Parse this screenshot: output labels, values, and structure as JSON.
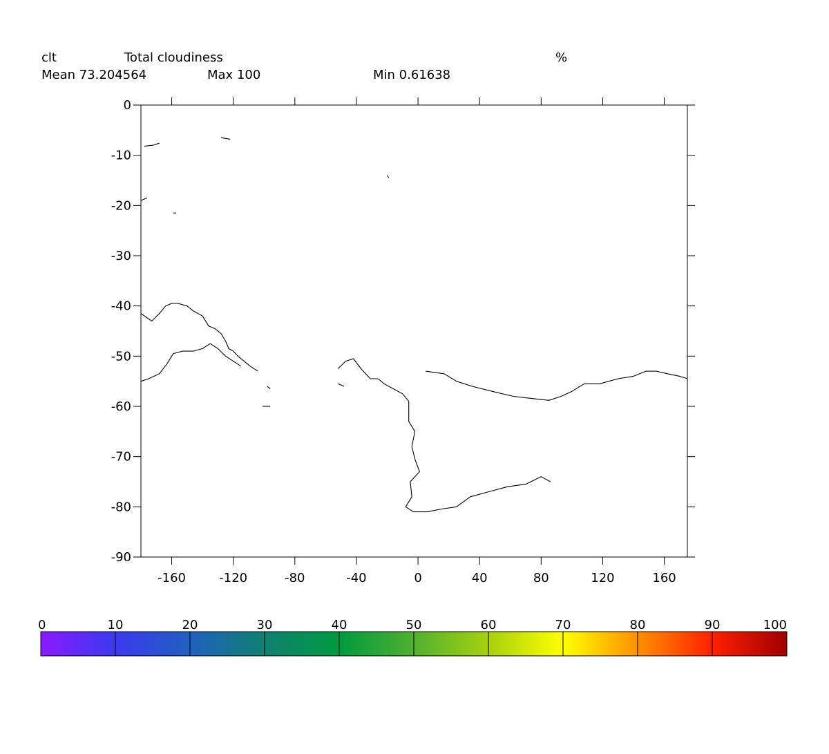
{
  "header": {
    "variable": "clt",
    "long_name": "Total cloudiness",
    "units": "%",
    "mean_text": "Mean 73.204564",
    "max_text": "Max 100",
    "min_text": "Min 0.61638"
  },
  "map": {
    "lon_range": [
      -180,
      175
    ],
    "lat_range": [
      -90,
      0
    ],
    "x_ticks": [
      -160,
      -120,
      -80,
      -40,
      0,
      40,
      80,
      120,
      160
    ],
    "y_ticks": [
      0,
      -10,
      -20,
      -30,
      -40,
      -50,
      -60,
      -70,
      -80,
      -90
    ],
    "x_tick_labels": [
      "-160",
      "-120",
      "-80",
      "-40",
      "0",
      "40",
      "80",
      "120",
      "160"
    ],
    "y_tick_labels": [
      "0",
      "-10",
      "-20",
      "-30",
      "-40",
      "-50",
      "-60",
      "-70",
      "-80",
      "-90"
    ],
    "coastlines": [
      {
        "name": "australia-south-coast",
        "points": [
          [
            -180,
            -41.5
          ],
          [
            -173,
            -43
          ],
          [
            -168,
            -41.5
          ],
          [
            -164,
            -40
          ],
          [
            -160,
            -39.5
          ],
          [
            -156,
            -39.5
          ],
          [
            -150,
            -40
          ],
          [
            -146,
            -41
          ],
          [
            -140,
            -42
          ],
          [
            -136,
            -44
          ],
          [
            -132,
            -44.5
          ],
          [
            -128,
            -45.5
          ],
          [
            -125,
            -47
          ],
          [
            -123,
            -48.5
          ],
          [
            -120,
            -49
          ],
          [
            -117,
            -50
          ],
          [
            -113,
            -51
          ],
          [
            -109,
            -52
          ],
          [
            -104,
            -53
          ]
        ]
      },
      {
        "name": "antarctica-pacific-coast",
        "points": [
          [
            -180,
            -55
          ],
          [
            -175,
            -54.5
          ],
          [
            -168,
            -53.5
          ],
          [
            -163,
            -51.5
          ],
          [
            -159,
            -49.5
          ],
          [
            -153,
            -49
          ],
          [
            -146,
            -49
          ],
          [
            -140,
            -48.5
          ],
          [
            -135,
            -47.5
          ],
          [
            -130,
            -48.5
          ],
          [
            -125,
            -50
          ],
          [
            -120,
            -51
          ],
          [
            -115,
            -52
          ]
        ]
      },
      {
        "name": "africa-south-coast",
        "points": [
          [
            -52,
            -52.5
          ],
          [
            -47,
            -51
          ],
          [
            -42,
            -50.5
          ],
          [
            -37,
            -52.5
          ],
          [
            -31,
            -54.5
          ],
          [
            -26,
            -54.5
          ],
          [
            -22,
            -55.5
          ],
          [
            -16,
            -56.5
          ],
          [
            -10,
            -57.5
          ],
          [
            -6,
            -59
          ],
          [
            -6,
            -63
          ],
          [
            -2,
            -65
          ],
          [
            -4,
            -68
          ],
          [
            -2,
            -70.5
          ],
          [
            1,
            -73
          ],
          [
            -5,
            -75
          ],
          [
            -4,
            -78
          ],
          [
            -8,
            -80
          ],
          [
            -3,
            -81
          ],
          [
            6,
            -81
          ],
          [
            14,
            -80.5
          ],
          [
            25,
            -80
          ],
          [
            34,
            -78
          ],
          [
            46,
            -77
          ],
          [
            58,
            -76
          ],
          [
            70,
            -75.5
          ],
          [
            80,
            -74
          ],
          [
            86,
            -75
          ]
        ]
      },
      {
        "name": "antarctica-indian-coast",
        "points": [
          [
            5,
            -53
          ],
          [
            17,
            -53.5
          ],
          [
            25,
            -55
          ],
          [
            35,
            -56
          ],
          [
            48,
            -57
          ],
          [
            62,
            -58
          ],
          [
            76,
            -58.5
          ],
          [
            85,
            -58.8
          ],
          [
            93,
            -58
          ],
          [
            100,
            -57
          ],
          [
            108,
            -55.5
          ],
          [
            118,
            -55.5
          ],
          [
            130,
            -54.5
          ],
          [
            140,
            -54
          ],
          [
            148,
            -53
          ],
          [
            155,
            -53
          ],
          [
            162,
            -53.5
          ],
          [
            170,
            -54
          ],
          [
            175,
            -54.5
          ]
        ]
      }
    ],
    "islands": [
      {
        "name": "island-a",
        "points": [
          [
            -178,
            -8.2
          ],
          [
            -172,
            -8
          ],
          [
            -168,
            -7.6
          ]
        ]
      },
      {
        "name": "island-b",
        "points": [
          [
            -128,
            -6.5
          ],
          [
            -122,
            -6.8
          ]
        ]
      },
      {
        "name": "island-c",
        "points": [
          [
            -20,
            -14
          ],
          [
            -19,
            -14.5
          ]
        ]
      },
      {
        "name": "island-d",
        "points": [
          [
            -180,
            -19
          ],
          [
            -176,
            -18.5
          ]
        ]
      },
      {
        "name": "island-e",
        "points": [
          [
            -159,
            -21.5
          ],
          [
            -157,
            -21.5
          ]
        ]
      },
      {
        "name": "island-f",
        "points": [
          [
            -98,
            -56
          ],
          [
            -96,
            -56.5
          ]
        ]
      },
      {
        "name": "island-g",
        "points": [
          [
            -101,
            -60
          ],
          [
            -96,
            -60
          ]
        ]
      },
      {
        "name": "island-h",
        "points": [
          [
            -52,
            -55.5
          ],
          [
            -48,
            -56
          ]
        ]
      }
    ]
  },
  "colorbar": {
    "min": 0,
    "max": 100,
    "tick_labels": [
      "0",
      "10",
      "20",
      "30",
      "40",
      "50",
      "60",
      "70",
      "80",
      "90",
      "100"
    ],
    "colors": [
      "#8a1aff",
      "#3a3aee",
      "#2060c0",
      "#108070",
      "#009a40",
      "#50b030",
      "#a8d010",
      "#ffff00",
      "#ff9000",
      "#ff2000",
      "#a00000"
    ]
  }
}
